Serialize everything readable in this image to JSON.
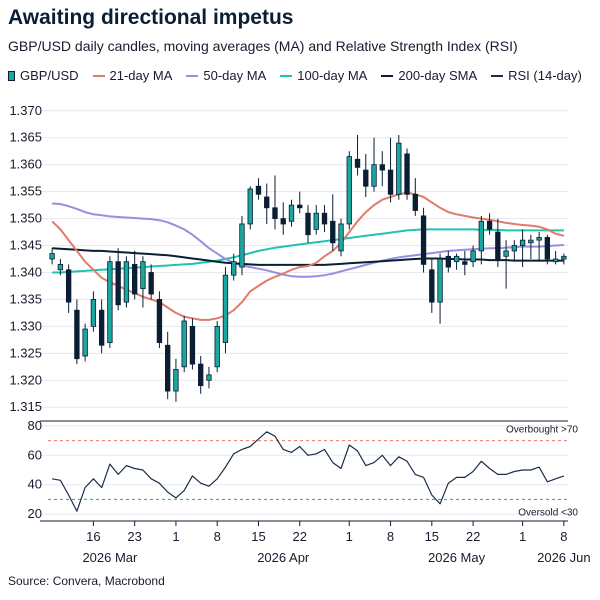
{
  "title": "Awaiting directional impetus",
  "subtitle": "GBP/USD daily candles, moving averages (MA) and Relative Strength Index (RSI)",
  "source": "Source: Convera, Macrobond",
  "legend": [
    {
      "label": "GBP/USD",
      "kind": "candle",
      "color": "#1aa7a0"
    },
    {
      "label": "21-day MA",
      "kind": "line",
      "color": "#e07a6c"
    },
    {
      "label": "50-day MA",
      "kind": "line",
      "color": "#9b8ee0"
    },
    {
      "label": "100-day MA",
      "kind": "line",
      "color": "#1fc4b0"
    },
    {
      "label": "200-day SMA",
      "kind": "line",
      "color": "#0b1e33"
    },
    {
      "label": "RSI (14-day)",
      "kind": "line",
      "color": "#1a2e4a"
    }
  ],
  "chart_data": {
    "type": "candlestick",
    "x_ticks": [
      {
        "label": "16",
        "i": 5
      },
      {
        "label": "23",
        "i": 10
      },
      {
        "label": "1",
        "i": 15
      },
      {
        "label": "8",
        "i": 20
      },
      {
        "label": "15",
        "i": 25
      },
      {
        "label": "22",
        "i": 30
      },
      {
        "label": "1",
        "i": 36
      },
      {
        "label": "8",
        "i": 41
      },
      {
        "label": "15",
        "i": 46
      },
      {
        "label": "22",
        "i": 51
      },
      {
        "label": "1",
        "i": 57
      },
      {
        "label": "8",
        "i": 62
      }
    ],
    "month_labels": [
      {
        "label": "2026 Mar",
        "i": 7
      },
      {
        "label": "2026 Apr",
        "i": 28
      },
      {
        "label": "2026 May",
        "i": 49
      },
      {
        "label": "2026 Jun",
        "i": 62
      }
    ],
    "price_axis": {
      "ylim": [
        1.313,
        1.372
      ],
      "ticks": [
        1.315,
        1.32,
        1.325,
        1.33,
        1.335,
        1.34,
        1.345,
        1.35,
        1.355,
        1.36,
        1.365,
        1.37
      ]
    },
    "rsi_axis": {
      "ylim": [
        16,
        84
      ],
      "ticks": [
        20,
        40,
        60,
        80
      ]
    },
    "candles": [
      {
        "o": 1.3425,
        "h": 1.3445,
        "l": 1.3415,
        "c": 1.3435
      },
      {
        "o": 1.3405,
        "h": 1.3425,
        "l": 1.3395,
        "c": 1.3415
      },
      {
        "o": 1.3405,
        "h": 1.3415,
        "l": 1.3325,
        "c": 1.3345
      },
      {
        "o": 1.333,
        "h": 1.335,
        "l": 1.323,
        "c": 1.324
      },
      {
        "o": 1.3245,
        "h": 1.3305,
        "l": 1.3235,
        "c": 1.3295
      },
      {
        "o": 1.33,
        "h": 1.3365,
        "l": 1.329,
        "c": 1.335
      },
      {
        "o": 1.333,
        "h": 1.335,
        "l": 1.325,
        "c": 1.3265
      },
      {
        "o": 1.327,
        "h": 1.343,
        "l": 1.326,
        "c": 1.342
      },
      {
        "o": 1.342,
        "h": 1.3445,
        "l": 1.333,
        "c": 1.334
      },
      {
        "o": 1.3345,
        "h": 1.343,
        "l": 1.3335,
        "c": 1.342
      },
      {
        "o": 1.3415,
        "h": 1.344,
        "l": 1.335,
        "c": 1.336
      },
      {
        "o": 1.337,
        "h": 1.343,
        "l": 1.3335,
        "c": 1.342
      },
      {
        "o": 1.34,
        "h": 1.3415,
        "l": 1.335,
        "c": 1.336
      },
      {
        "o": 1.335,
        "h": 1.3365,
        "l": 1.326,
        "c": 1.327
      },
      {
        "o": 1.3265,
        "h": 1.329,
        "l": 1.3165,
        "c": 1.318
      },
      {
        "o": 1.318,
        "h": 1.324,
        "l": 1.316,
        "c": 1.322
      },
      {
        "o": 1.3225,
        "h": 1.332,
        "l": 1.3215,
        "c": 1.331
      },
      {
        "o": 1.33,
        "h": 1.3315,
        "l": 1.322,
        "c": 1.323
      },
      {
        "o": 1.323,
        "h": 1.3245,
        "l": 1.3175,
        "c": 1.319
      },
      {
        "o": 1.32,
        "h": 1.3225,
        "l": 1.3185,
        "c": 1.321
      },
      {
        "o": 1.3225,
        "h": 1.331,
        "l": 1.3215,
        "c": 1.33
      },
      {
        "o": 1.327,
        "h": 1.341,
        "l": 1.325,
        "c": 1.3395
      },
      {
        "o": 1.3395,
        "h": 1.3435,
        "l": 1.3385,
        "c": 1.342
      },
      {
        "o": 1.341,
        "h": 1.3505,
        "l": 1.3395,
        "c": 1.349
      },
      {
        "o": 1.349,
        "h": 1.356,
        "l": 1.348,
        "c": 1.3555
      },
      {
        "o": 1.356,
        "h": 1.3575,
        "l": 1.3535,
        "c": 1.3545
      },
      {
        "o": 1.354,
        "h": 1.3565,
        "l": 1.349,
        "c": 1.352
      },
      {
        "o": 1.352,
        "h": 1.358,
        "l": 1.348,
        "c": 1.35
      },
      {
        "o": 1.35,
        "h": 1.353,
        "l": 1.347,
        "c": 1.349
      },
      {
        "o": 1.3495,
        "h": 1.3535,
        "l": 1.3485,
        "c": 1.3525
      },
      {
        "o": 1.3525,
        "h": 1.355,
        "l": 1.351,
        "c": 1.352
      },
      {
        "o": 1.351,
        "h": 1.3525,
        "l": 1.3455,
        "c": 1.347
      },
      {
        "o": 1.348,
        "h": 1.3525,
        "l": 1.347,
        "c": 1.351
      },
      {
        "o": 1.351,
        "h": 1.3525,
        "l": 1.3475,
        "c": 1.349
      },
      {
        "o": 1.3495,
        "h": 1.3545,
        "l": 1.344,
        "c": 1.3455
      },
      {
        "o": 1.344,
        "h": 1.35,
        "l": 1.343,
        "c": 1.349
      },
      {
        "o": 1.349,
        "h": 1.3625,
        "l": 1.348,
        "c": 1.3615
      },
      {
        "o": 1.361,
        "h": 1.3655,
        "l": 1.358,
        "c": 1.3595
      },
      {
        "o": 1.359,
        "h": 1.362,
        "l": 1.354,
        "c": 1.356
      },
      {
        "o": 1.356,
        "h": 1.365,
        "l": 1.355,
        "c": 1.36
      },
      {
        "o": 1.36,
        "h": 1.3625,
        "l": 1.356,
        "c": 1.359
      },
      {
        "o": 1.359,
        "h": 1.365,
        "l": 1.353,
        "c": 1.3545
      },
      {
        "o": 1.3545,
        "h": 1.3655,
        "l": 1.3535,
        "c": 1.364
      },
      {
        "o": 1.362,
        "h": 1.363,
        "l": 1.3535,
        "c": 1.3545
      },
      {
        "o": 1.3545,
        "h": 1.3575,
        "l": 1.3505,
        "c": 1.3515
      },
      {
        "o": 1.3505,
        "h": 1.352,
        "l": 1.34,
        "c": 1.3415
      },
      {
        "o": 1.3405,
        "h": 1.3425,
        "l": 1.3325,
        "c": 1.3345
      },
      {
        "o": 1.3345,
        "h": 1.3435,
        "l": 1.3305,
        "c": 1.3425
      },
      {
        "o": 1.343,
        "h": 1.344,
        "l": 1.34,
        "c": 1.341
      },
      {
        "o": 1.342,
        "h": 1.3435,
        "l": 1.3405,
        "c": 1.343
      },
      {
        "o": 1.342,
        "h": 1.344,
        "l": 1.3395,
        "c": 1.3415
      },
      {
        "o": 1.342,
        "h": 1.345,
        "l": 1.341,
        "c": 1.344
      },
      {
        "o": 1.344,
        "h": 1.3505,
        "l": 1.3415,
        "c": 1.3495
      },
      {
        "o": 1.3495,
        "h": 1.351,
        "l": 1.347,
        "c": 1.348
      },
      {
        "o": 1.3475,
        "h": 1.35,
        "l": 1.341,
        "c": 1.3425
      },
      {
        "o": 1.343,
        "h": 1.346,
        "l": 1.337,
        "c": 1.344
      },
      {
        "o": 1.344,
        "h": 1.346,
        "l": 1.342,
        "c": 1.345
      },
      {
        "o": 1.345,
        "h": 1.348,
        "l": 1.341,
        "c": 1.346
      },
      {
        "o": 1.3455,
        "h": 1.347,
        "l": 1.3425,
        "c": 1.346
      },
      {
        "o": 1.346,
        "h": 1.3475,
        "l": 1.342,
        "c": 1.3465
      },
      {
        "o": 1.3465,
        "h": 1.347,
        "l": 1.3415,
        "c": 1.3425
      },
      {
        "o": 1.342,
        "h": 1.344,
        "l": 1.3415,
        "c": 1.3425
      },
      {
        "o": 1.3425,
        "h": 1.3435,
        "l": 1.3415,
        "c": 1.343
      }
    ],
    "ma21": [
      1.3495,
      1.348,
      1.346,
      1.344,
      1.342,
      1.3405,
      1.339,
      1.3382,
      1.3375,
      1.3368,
      1.3362,
      1.3355,
      1.335,
      1.3345,
      1.3335,
      1.3325,
      1.3318,
      1.3315,
      1.3312,
      1.3312,
      1.3315,
      1.332,
      1.333,
      1.3345,
      1.3365,
      1.3375,
      1.3385,
      1.3392,
      1.3398,
      1.3405,
      1.341,
      1.3412,
      1.3418,
      1.343,
      1.344,
      1.3455,
      1.3475,
      1.3495,
      1.3512,
      1.3525,
      1.3535,
      1.354,
      1.3545,
      1.3548,
      1.3545,
      1.354,
      1.353,
      1.352,
      1.3512,
      1.3508,
      1.3505,
      1.3502,
      1.35,
      1.3498,
      1.3495,
      1.3492,
      1.349,
      1.3488,
      1.3487,
      1.3485,
      1.348,
      1.3472,
      1.3468
    ],
    "ma50": [
      1.3528,
      1.3527,
      1.3523,
      1.3518,
      1.3512,
      1.3508,
      1.3506,
      1.3504,
      1.3503,
      1.3502,
      1.3501,
      1.35,
      1.3499,
      1.3497,
      1.3493,
      1.3487,
      1.348,
      1.347,
      1.3458,
      1.3445,
      1.3435,
      1.3425,
      1.3418,
      1.3413,
      1.341,
      1.3407,
      1.3404,
      1.34,
      1.3396,
      1.3393,
      1.3392,
      1.3392,
      1.3393,
      1.3395,
      1.3398,
      1.3402,
      1.3406,
      1.341,
      1.3414,
      1.3418,
      1.3422,
      1.3425,
      1.3428,
      1.343,
      1.3432,
      1.3434,
      1.3436,
      1.3438,
      1.344,
      1.3441,
      1.3442,
      1.3443,
      1.3444,
      1.3445,
      1.3445,
      1.3446,
      1.3447,
      1.3448,
      1.3448,
      1.3448,
      1.3449,
      1.345,
      1.3451
    ],
    "ma100": [
      1.34,
      1.34,
      1.3401,
      1.3402,
      1.3403,
      1.3404,
      1.3405,
      1.3406,
      1.3407,
      1.3408,
      1.3409,
      1.341,
      1.3411,
      1.3412,
      1.3413,
      1.3414,
      1.3415,
      1.3416,
      1.3418,
      1.342,
      1.3422,
      1.3425,
      1.3428,
      1.3432,
      1.3436,
      1.344,
      1.3443,
      1.3446,
      1.3448,
      1.345,
      1.3452,
      1.3454,
      1.3456,
      1.3458,
      1.346,
      1.3462,
      1.3464,
      1.3466,
      1.3468,
      1.347,
      1.3472,
      1.3474,
      1.3476,
      1.3478,
      1.3479,
      1.348,
      1.348,
      1.348,
      1.348,
      1.348,
      1.348,
      1.348,
      1.3479,
      1.3479,
      1.3479,
      1.3478,
      1.3478,
      1.3478,
      1.3478,
      1.3478,
      1.3478,
      1.3478,
      1.3478
    ],
    "sma200": [
      1.3445,
      1.3444,
      1.3443,
      1.3442,
      1.3441,
      1.344,
      1.344,
      1.3439,
      1.3438,
      1.3437,
      1.3436,
      1.3435,
      1.3434,
      1.3433,
      1.3432,
      1.343,
      1.3428,
      1.3426,
      1.3424,
      1.3422,
      1.342,
      1.3418,
      1.3417,
      1.3416,
      1.3415,
      1.3414,
      1.3414,
      1.3414,
      1.3414,
      1.3414,
      1.3414,
      1.3414,
      1.3414,
      1.3414,
      1.3415,
      1.3416,
      1.3417,
      1.3418,
      1.3419,
      1.342,
      1.3421,
      1.3422,
      1.3423,
      1.3424,
      1.3425,
      1.3426,
      1.3426,
      1.3426,
      1.3425,
      1.3425,
      1.3424,
      1.3424,
      1.3424,
      1.3423,
      1.3423,
      1.3423,
      1.3422,
      1.3422,
      1.3422,
      1.3422,
      1.3422,
      1.3422,
      1.3422
    ],
    "rsi": [
      44,
      43,
      33,
      22,
      38,
      44,
      38,
      54,
      47,
      53,
      51,
      50,
      44,
      41,
      35,
      31,
      36,
      46,
      41,
      39,
      44,
      52,
      61,
      64,
      66,
      71,
      76,
      73,
      64,
      62,
      66,
      60,
      61,
      64,
      55,
      51,
      67,
      63,
      53,
      55,
      60,
      53,
      59,
      56,
      47,
      45,
      33,
      27,
      41,
      45,
      45,
      49,
      56,
      51,
      47,
      47,
      49,
      50,
      50,
      52,
      42,
      44,
      46
    ],
    "rsi_overbought": {
      "value": 70,
      "label": "Overbought >70"
    },
    "rsi_oversold": {
      "value": 30,
      "label": "Oversold <30"
    }
  }
}
